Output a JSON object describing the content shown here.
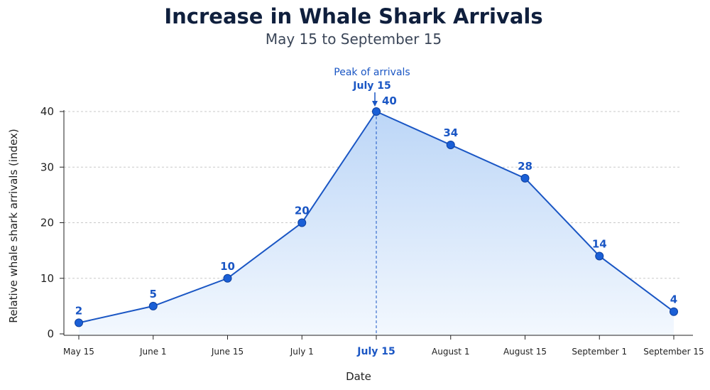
{
  "chart_data": {
    "type": "area",
    "title": "Increase in Whale Shark Arrivals",
    "subtitle": "May 15 to September 15",
    "xlabel": "Date",
    "ylabel": "Relative whale shark arrivals (index)",
    "categories": [
      "May 15",
      "June 1",
      "June 15",
      "July 1",
      "July 15",
      "August 1",
      "August 15",
      "September 1",
      "September 15"
    ],
    "series": [
      {
        "values": [
          2,
          5,
          10,
          20,
          40,
          34,
          28,
          14,
          4
        ],
        "data_labels": [
          "2",
          "5",
          "10",
          "20",
          "40",
          "34",
          "28",
          "14",
          "4"
        ]
      }
    ],
    "ylim": [
      0,
      40
    ],
    "yticks": [
      "0",
      "10",
      "20",
      "30",
      "40"
    ],
    "grid": "horizontal dashed",
    "highlight_category": "July 15",
    "annotation": {
      "line1": "Peak of arrivals",
      "line2": "July 15"
    },
    "colors": {
      "line": "#1a56c4",
      "marker": "#1a5fd6",
      "fill_top": "#bcd6f7",
      "fill_bottom": "#f3f8fe",
      "grid": "#c9c9c9"
    }
  }
}
